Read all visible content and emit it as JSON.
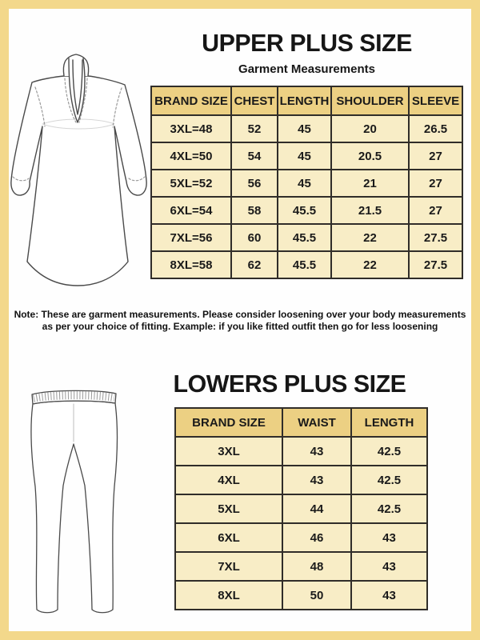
{
  "colors": {
    "frame": "#f3d88b",
    "headbg": "#ecd083",
    "rowbg": "#f8edc6",
    "line": "#302d29",
    "art_stroke": "#4a4a4a",
    "art_faint": "#c9c9c9"
  },
  "upper": {
    "title": "UPPER PLUS SIZE",
    "subtitle": "Garment Measurements",
    "table": {
      "headers": [
        "BRAND SIZE",
        "CHEST",
        "LENGTH",
        "SHOULDER",
        "SLEEVE"
      ],
      "rows": [
        [
          "3XL=48",
          "52",
          "45",
          "20",
          "26.5"
        ],
        [
          "4XL=50",
          "54",
          "45",
          "20.5",
          "27"
        ],
        [
          "5XL=52",
          "56",
          "45",
          "21",
          "27"
        ],
        [
          "6XL=54",
          "58",
          "45.5",
          "21.5",
          "27"
        ],
        [
          "7XL=56",
          "60",
          "45.5",
          "22",
          "27.5"
        ],
        [
          "8XL=58",
          "62",
          "45.5",
          "22",
          "27.5"
        ]
      ]
    }
  },
  "note": {
    "line1": "Note: These are garment measurements. Please consider loosening over your body measurements",
    "line2": "as per your choice of fitting. Example: if you like fitted outfit then go for less loosening"
  },
  "lower": {
    "title": "LOWERS PLUS SIZE",
    "table": {
      "headers": [
        "BRAND SIZE",
        "WAIST",
        "LENGTH"
      ],
      "rows": [
        [
          "3XL",
          "43",
          "42.5"
        ],
        [
          "4XL",
          "43",
          "42.5"
        ],
        [
          "5XL",
          "44",
          "42.5"
        ],
        [
          "6XL",
          "46",
          "43"
        ],
        [
          "7XL",
          "48",
          "43"
        ],
        [
          "8XL",
          "50",
          "43"
        ]
      ]
    }
  },
  "illustrations": {
    "kurta": "long-sleeve-kurta-line-drawing",
    "leggings": "elastic-waist-leggings-line-drawing"
  }
}
